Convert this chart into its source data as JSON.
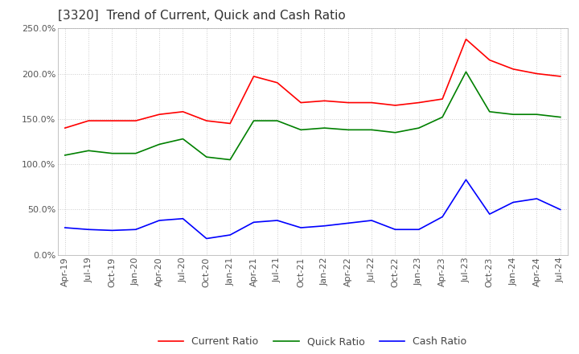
{
  "title": "[3320]  Trend of Current, Quick and Cash Ratio",
  "x_labels": [
    "Apr-19",
    "Jul-19",
    "Oct-19",
    "Jan-20",
    "Apr-20",
    "Jul-20",
    "Oct-20",
    "Jan-21",
    "Apr-21",
    "Jul-21",
    "Oct-21",
    "Jan-22",
    "Apr-22",
    "Jul-22",
    "Oct-22",
    "Jan-23",
    "Apr-23",
    "Jul-23",
    "Oct-23",
    "Jan-24",
    "Apr-24",
    "Jul-24"
  ],
  "current_ratio": [
    140,
    148,
    148,
    148,
    155,
    158,
    148,
    145,
    197,
    190,
    168,
    170,
    168,
    168,
    165,
    168,
    172,
    238,
    215,
    205,
    200,
    197
  ],
  "quick_ratio": [
    110,
    115,
    112,
    112,
    122,
    128,
    108,
    105,
    148,
    148,
    138,
    140,
    138,
    138,
    135,
    140,
    152,
    202,
    158,
    155,
    155,
    152
  ],
  "cash_ratio": [
    30,
    28,
    27,
    28,
    38,
    40,
    18,
    22,
    36,
    38,
    30,
    32,
    35,
    38,
    28,
    28,
    42,
    83,
    45,
    58,
    62,
    50
  ],
  "current_color": "#ff0000",
  "quick_color": "#008000",
  "cash_color": "#0000ff",
  "ylim": [
    0,
    250
  ],
  "yticks": [
    0,
    50,
    100,
    150,
    200,
    250
  ],
  "background_color": "#ffffff",
  "grid_color": "#cccccc",
  "title_fontsize": 11,
  "tick_fontsize": 8,
  "legend_fontsize": 9
}
